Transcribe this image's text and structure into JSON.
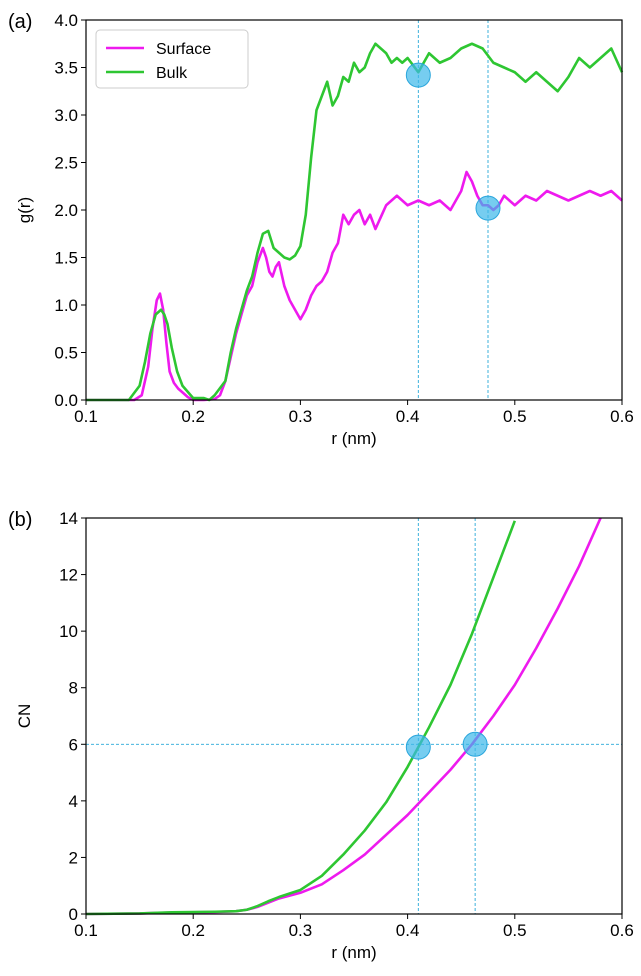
{
  "chart_data": [
    {
      "panel_label": "(a)",
      "type": "line",
      "xlabel": "r (nm)",
      "ylabel": "g(r)",
      "xlim": [
        0.1,
        0.6
      ],
      "ylim": [
        0.0,
        4.0
      ],
      "xticks": [
        "0.1",
        "0.2",
        "0.3",
        "0.4",
        "0.5",
        "0.6"
      ],
      "yticks": [
        "0.0",
        "0.5",
        "1.0",
        "1.5",
        "2.0",
        "2.5",
        "3.0",
        "3.5",
        "4.0"
      ],
      "legend": {
        "placement": "top-left",
        "entries": [
          "Surface",
          "Bulk"
        ]
      },
      "series": [
        {
          "name": "Surface",
          "color": "#ee1aee",
          "x": [
            0.1,
            0.145,
            0.152,
            0.158,
            0.162,
            0.166,
            0.169,
            0.172,
            0.175,
            0.178,
            0.182,
            0.186,
            0.19,
            0.195,
            0.2,
            0.21,
            0.22,
            0.225,
            0.23,
            0.235,
            0.24,
            0.245,
            0.25,
            0.255,
            0.26,
            0.265,
            0.268,
            0.271,
            0.274,
            0.277,
            0.28,
            0.285,
            0.29,
            0.295,
            0.3,
            0.305,
            0.31,
            0.315,
            0.32,
            0.325,
            0.33,
            0.335,
            0.34,
            0.345,
            0.35,
            0.355,
            0.36,
            0.365,
            0.37,
            0.38,
            0.39,
            0.4,
            0.41,
            0.42,
            0.43,
            0.44,
            0.45,
            0.455,
            0.46,
            0.465,
            0.47,
            0.475,
            0.48,
            0.485,
            0.49,
            0.5,
            0.51,
            0.52,
            0.53,
            0.54,
            0.55,
            0.56,
            0.57,
            0.58,
            0.59,
            0.6
          ],
          "y": [
            0.0,
            0.0,
            0.05,
            0.35,
            0.75,
            1.05,
            1.12,
            0.95,
            0.6,
            0.3,
            0.18,
            0.12,
            0.08,
            0.03,
            0.0,
            0.0,
            0.01,
            0.05,
            0.2,
            0.45,
            0.7,
            0.9,
            1.1,
            1.2,
            1.45,
            1.6,
            1.5,
            1.35,
            1.3,
            1.4,
            1.45,
            1.2,
            1.05,
            0.95,
            0.85,
            0.95,
            1.1,
            1.2,
            1.25,
            1.35,
            1.55,
            1.65,
            1.95,
            1.85,
            1.95,
            2.0,
            1.85,
            1.95,
            1.8,
            2.05,
            2.15,
            2.05,
            2.1,
            2.05,
            2.1,
            2.0,
            2.2,
            2.4,
            2.3,
            2.15,
            2.05,
            2.05,
            2.0,
            2.05,
            2.15,
            2.05,
            2.15,
            2.1,
            2.2,
            2.15,
            2.1,
            2.15,
            2.2,
            2.15,
            2.2,
            2.1
          ]
        },
        {
          "name": "Bulk",
          "color": "#2ec632",
          "x": [
            0.1,
            0.14,
            0.15,
            0.155,
            0.16,
            0.165,
            0.17,
            0.173,
            0.176,
            0.18,
            0.185,
            0.19,
            0.2,
            0.21,
            0.215,
            0.22,
            0.23,
            0.235,
            0.24,
            0.245,
            0.25,
            0.255,
            0.26,
            0.265,
            0.27,
            0.275,
            0.28,
            0.285,
            0.29,
            0.295,
            0.3,
            0.305,
            0.31,
            0.315,
            0.32,
            0.325,
            0.33,
            0.335,
            0.34,
            0.345,
            0.35,
            0.355,
            0.36,
            0.365,
            0.37,
            0.375,
            0.38,
            0.385,
            0.39,
            0.395,
            0.4,
            0.41,
            0.42,
            0.43,
            0.44,
            0.45,
            0.46,
            0.47,
            0.48,
            0.49,
            0.5,
            0.51,
            0.52,
            0.53,
            0.54,
            0.55,
            0.56,
            0.57,
            0.58,
            0.59,
            0.6
          ],
          "y": [
            0.0,
            0.0,
            0.15,
            0.4,
            0.7,
            0.9,
            0.95,
            0.9,
            0.8,
            0.55,
            0.3,
            0.15,
            0.02,
            0.02,
            0.0,
            0.05,
            0.2,
            0.5,
            0.75,
            0.95,
            1.15,
            1.3,
            1.55,
            1.75,
            1.78,
            1.6,
            1.55,
            1.5,
            1.48,
            1.52,
            1.62,
            1.95,
            2.55,
            3.05,
            3.2,
            3.35,
            3.1,
            3.2,
            3.4,
            3.35,
            3.55,
            3.45,
            3.5,
            3.65,
            3.75,
            3.7,
            3.65,
            3.55,
            3.6,
            3.55,
            3.6,
            3.45,
            3.65,
            3.55,
            3.6,
            3.7,
            3.75,
            3.7,
            3.55,
            3.5,
            3.45,
            3.35,
            3.45,
            3.35,
            3.25,
            3.4,
            3.6,
            3.5,
            3.6,
            3.7,
            3.45
          ]
        }
      ],
      "reference_lines": {
        "x": [
          0.41,
          0.475
        ]
      },
      "markers": [
        {
          "x": 0.41,
          "y": 3.42,
          "color": "#3cb8ea"
        },
        {
          "x": 0.475,
          "y": 2.02,
          "color": "#3cb8ea"
        }
      ]
    },
    {
      "panel_label": "(b)",
      "type": "line",
      "xlabel": "r (nm)",
      "ylabel": "CN",
      "xlim": [
        0.1,
        0.6
      ],
      "ylim": [
        0,
        14
      ],
      "xticks": [
        "0.1",
        "0.2",
        "0.3",
        "0.4",
        "0.5",
        "0.6"
      ],
      "yticks": [
        "0",
        "2",
        "4",
        "6",
        "8",
        "10",
        "12",
        "14"
      ],
      "series": [
        {
          "name": "Surface",
          "color": "#ee1aee",
          "x": [
            0.1,
            0.15,
            0.18,
            0.2,
            0.22,
            0.24,
            0.25,
            0.26,
            0.27,
            0.28,
            0.3,
            0.32,
            0.34,
            0.36,
            0.38,
            0.4,
            0.42,
            0.44,
            0.46,
            0.48,
            0.5,
            0.52,
            0.54,
            0.56,
            0.58
          ],
          "y": [
            0.0,
            0.02,
            0.05,
            0.06,
            0.07,
            0.1,
            0.15,
            0.25,
            0.4,
            0.55,
            0.75,
            1.05,
            1.55,
            2.1,
            2.8,
            3.5,
            4.3,
            5.1,
            6.0,
            7.0,
            8.1,
            9.4,
            10.8,
            12.3,
            14.0
          ]
        },
        {
          "name": "Bulk",
          "color": "#2ec632",
          "x": [
            0.1,
            0.15,
            0.18,
            0.2,
            0.22,
            0.24,
            0.25,
            0.26,
            0.27,
            0.28,
            0.3,
            0.32,
            0.34,
            0.36,
            0.38,
            0.4,
            0.42,
            0.44,
            0.46,
            0.48,
            0.5
          ],
          "y": [
            0.0,
            0.02,
            0.06,
            0.07,
            0.08,
            0.1,
            0.15,
            0.28,
            0.45,
            0.6,
            0.85,
            1.35,
            2.1,
            2.95,
            3.95,
            5.2,
            6.6,
            8.1,
            9.9,
            11.9,
            13.9
          ]
        }
      ],
      "reference_lines": {
        "x": [
          0.41,
          0.463
        ],
        "y": [
          6
        ]
      },
      "markers": [
        {
          "x": 0.41,
          "y": 5.9,
          "color": "#3cb8ea"
        },
        {
          "x": 0.463,
          "y": 6.0,
          "color": "#3cb8ea"
        }
      ]
    }
  ]
}
